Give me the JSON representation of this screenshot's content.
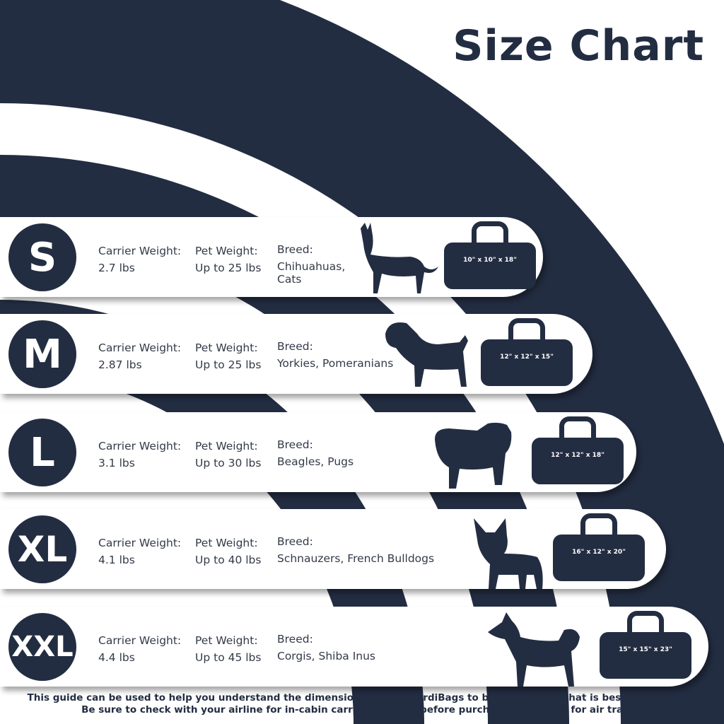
{
  "title": "Size Chart",
  "colors": {
    "navy": "#232d42",
    "background": "#ffffff"
  },
  "labels": {
    "carrier_weight": "Carrier Weight:",
    "pet_weight": "Pet Weight:",
    "breed": "Breed:"
  },
  "sizes": [
    {
      "size": "S",
      "carrier_weight": "2.7 lbs",
      "pet_weight": "Up to 25 lbs",
      "breed": "Chihuahuas, Cats",
      "pet_icon": "cat-silhouette",
      "dimensions": "10\" x 10\" x 18\""
    },
    {
      "size": "M",
      "carrier_weight": "2.87 lbs",
      "pet_weight": "Up to 25 lbs",
      "breed": "Yorkies, Pomeranians",
      "pet_icon": "terrier-silhouette",
      "dimensions": "12\" x 12\" x 15\""
    },
    {
      "size": "L",
      "carrier_weight": "3.1 lbs",
      "pet_weight": "Up to 30 lbs",
      "breed": "Beagles, Pugs",
      "pet_icon": "pug-silhouette",
      "dimensions": "12\" x 12\" x 18\""
    },
    {
      "size": "XL",
      "carrier_weight": "4.1 lbs",
      "pet_weight": "Up to 40 lbs",
      "breed": "Schnauzers, French Bulldogs",
      "pet_icon": "french-bulldog-silhouette",
      "dimensions": "16\" x 12\" x 20\""
    },
    {
      "size": "XXL",
      "carrier_weight": "4.4 lbs",
      "pet_weight": "Up to 45 lbs",
      "breed": "Corgis, Shiba Inus",
      "pet_icon": "shiba-silhouette",
      "dimensions": "15\" x 15\" x 23\""
    }
  ],
  "footer": {
    "line1": "This guide can be used to help you understand the dimensions of our SturdiBags to better choose what is best for your pet.",
    "line2": "Be sure to check with your airline for in-cabin carrier specifics before purchasing a carrier for air travel."
  }
}
